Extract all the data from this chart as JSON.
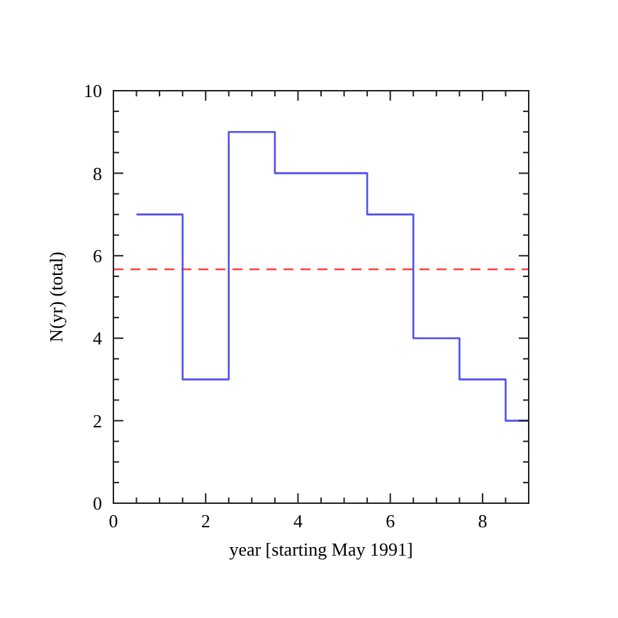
{
  "chart_data": {
    "type": "step",
    "xlabel": "year [starting May 1991]",
    "ylabel": "N(yr) (total)",
    "x": [
      0.5,
      1.5,
      2.5,
      3.5,
      4.5,
      5.5,
      6.5,
      7.5,
      8.5,
      9
    ],
    "series": [
      {
        "color": "#5050f0",
        "values": [
          7,
          3,
          9,
          8,
          8,
          7,
          4,
          3,
          2,
          2
        ]
      }
    ],
    "xlim": [
      0,
      9
    ],
    "xticks": [
      0,
      {
        "value": 0.5,
        "label": null
      },
      {
        "value": 1,
        "label": null
      },
      {
        "value": 1.5,
        "label": null
      },
      2,
      {
        "value": 2.5,
        "label": null
      },
      {
        "value": 3,
        "label": null
      },
      {
        "value": 3.5,
        "label": null
      },
      4,
      {
        "value": 4.5,
        "label": null
      },
      {
        "value": 5,
        "label": null
      },
      {
        "value": 5.5,
        "label": null
      },
      6,
      {
        "value": 6.5,
        "label": null
      },
      {
        "value": 7,
        "label": null
      },
      {
        "value": 7.5,
        "label": null
      },
      8,
      {
        "value": 8.5,
        "label": null
      }
    ],
    "ylim": [
      0,
      10
    ],
    "yticks": [
      0,
      {
        "value": 0.5,
        "label": null
      },
      {
        "value": 1,
        "label": null
      },
      {
        "value": 1.5,
        "label": null
      },
      2,
      {
        "value": 2.5,
        "label": null
      },
      {
        "value": 3,
        "label": null
      },
      {
        "value": 3.5,
        "label": null
      },
      4,
      {
        "value": 4.5,
        "label": null
      },
      {
        "value": 5,
        "label": null
      },
      {
        "value": 5.5,
        "label": null
      },
      6,
      {
        "value": 6.5,
        "label": null
      },
      {
        "value": 7,
        "label": null
      },
      {
        "value": 7.5,
        "label": null
      },
      8,
      {
        "value": 8.5,
        "label": null
      },
      {
        "value": 9,
        "label": null
      },
      {
        "value": 9.5,
        "label": null
      },
      10
    ],
    "ref_lines": [
      {
        "axis": "y",
        "value": 5.67,
        "color": "#ff4040",
        "line_style": "dashed"
      }
    ]
  }
}
